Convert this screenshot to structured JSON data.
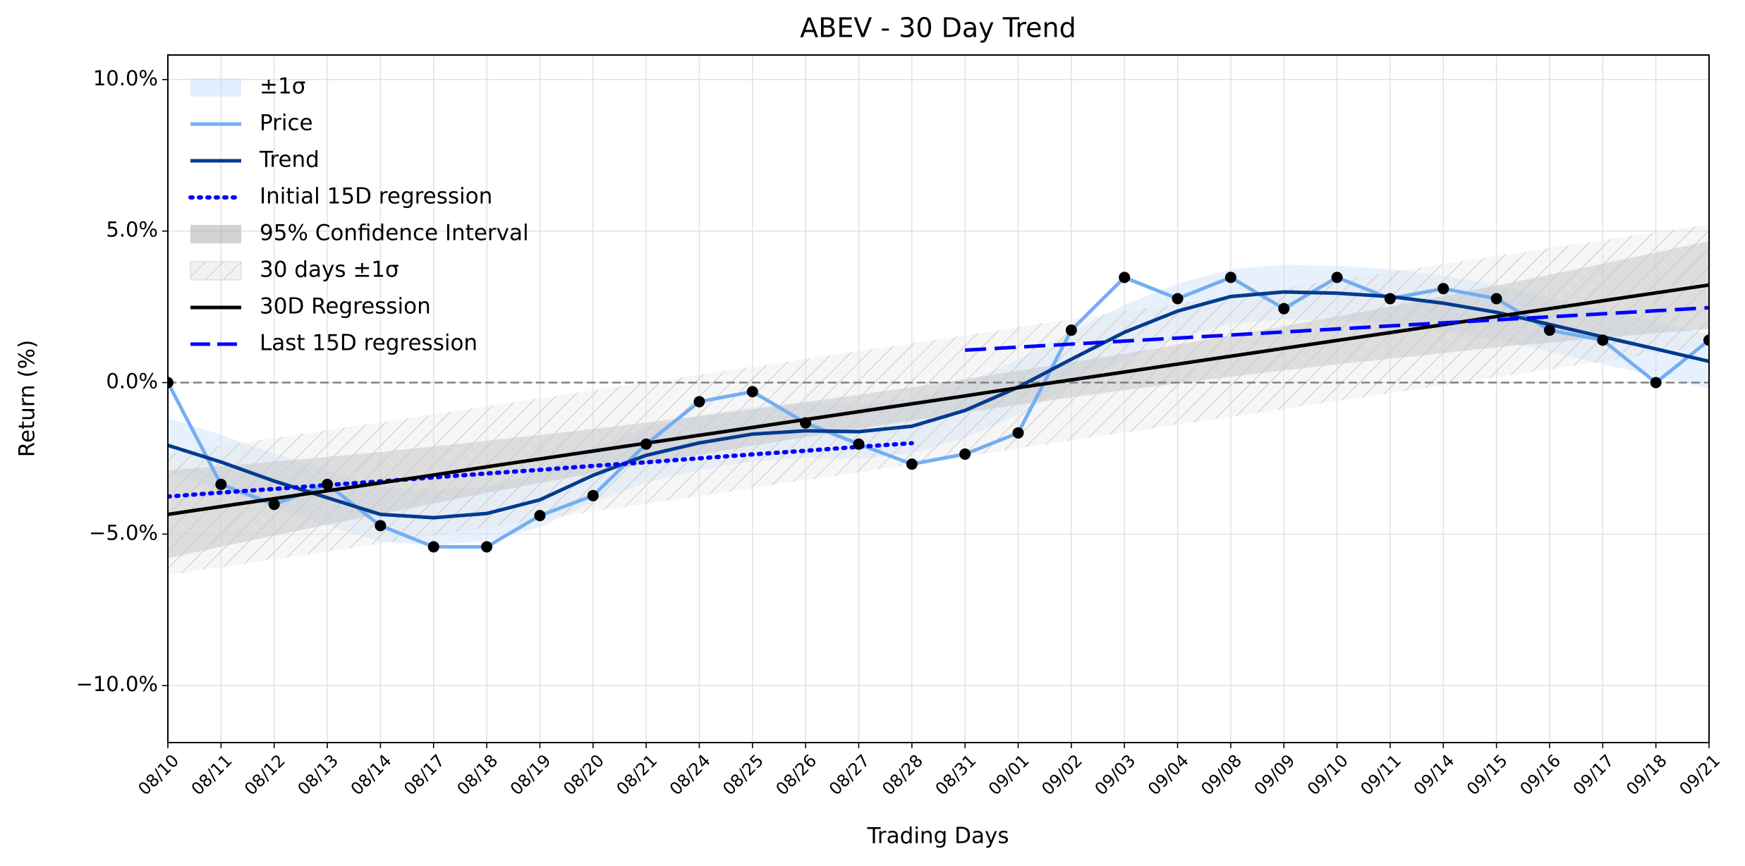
{
  "chart_data": {
    "type": "line",
    "title": "ABEV - 30 Day Trend",
    "x_label": "Trading Days",
    "y_label": "Return (%)",
    "categories": [
      "08/10",
      "08/11",
      "08/12",
      "08/13",
      "08/14",
      "08/17",
      "08/18",
      "08/19",
      "08/20",
      "08/21",
      "08/24",
      "08/25",
      "08/26",
      "08/27",
      "08/28",
      "08/31",
      "09/01",
      "09/02",
      "09/03",
      "09/04",
      "09/08",
      "09/09",
      "09/10",
      "09/11",
      "09/14",
      "09/15",
      "09/16",
      "09/17",
      "09/18",
      "09/21"
    ],
    "ylim": [
      -11.88,
      10.81
    ],
    "yticks": [
      {
        "value": -10,
        "label": "−10.0%"
      },
      {
        "value": -5,
        "label": "−5.0%"
      },
      {
        "value": 0,
        "label": "0.0%"
      },
      {
        "value": 5,
        "label": "5.0%"
      },
      {
        "value": 10,
        "label": "10.0%"
      }
    ],
    "grid": true,
    "reference_line": 0,
    "legend": "upper left",
    "series": [
      {
        "name": "±1σ",
        "kind": "band",
        "color": "#cfe3fb",
        "lower": [
          -2.97,
          -3.52,
          -4.15,
          -4.7,
          -5.25,
          -5.36,
          -5.22,
          -4.77,
          -3.96,
          -3.3,
          -2.89,
          -2.6,
          -2.49,
          -2.52,
          -2.34,
          -1.82,
          -1.05,
          -0.13,
          0.76,
          1.46,
          1.94,
          2.09,
          2.05,
          1.94,
          1.72,
          1.42,
          1.02,
          0.61,
          0.21,
          -0.2
        ],
        "upper": [
          -1.17,
          -1.72,
          -2.35,
          -2.9,
          -3.45,
          -3.56,
          -3.42,
          -2.97,
          -2.16,
          -1.5,
          -1.09,
          -0.8,
          -0.69,
          -0.72,
          -0.54,
          -0.02,
          0.75,
          1.67,
          2.56,
          3.26,
          3.74,
          3.89,
          3.85,
          3.74,
          3.52,
          3.22,
          2.82,
          2.41,
          2.01,
          1.6
        ]
      },
      {
        "name": "Price",
        "kind": "line",
        "color": "#74aef2",
        "line_style": "solid",
        "markers": true,
        "marker_color": "#000000",
        "values": [
          0.0,
          -3.36,
          -4.02,
          -3.36,
          -4.72,
          -5.42,
          -5.42,
          -4.39,
          -3.73,
          -2.03,
          -0.63,
          -0.3,
          -1.33,
          -2.03,
          -2.69,
          -2.36,
          -1.66,
          1.73,
          3.47,
          2.77,
          3.47,
          2.44,
          3.47,
          2.77,
          3.1,
          2.77,
          1.73,
          1.4,
          0.0,
          1.4
        ]
      },
      {
        "name": "Trend",
        "kind": "line",
        "color": "#003b8e",
        "line_style": "solid",
        "values": [
          -2.07,
          -2.62,
          -3.25,
          -3.8,
          -4.35,
          -4.46,
          -4.32,
          -3.87,
          -3.06,
          -2.4,
          -1.99,
          -1.7,
          -1.59,
          -1.62,
          -1.44,
          -0.92,
          -0.15,
          0.77,
          1.66,
          2.36,
          2.84,
          2.99,
          2.95,
          2.84,
          2.62,
          2.32,
          1.92,
          1.51,
          1.11,
          0.7
        ]
      },
      {
        "name": "Initial 15D regression",
        "kind": "line",
        "color": "#0000ff",
        "line_style": "dotted",
        "values": [
          -3.76,
          -3.63,
          -3.51,
          -3.38,
          -3.26,
          -3.13,
          -3.0,
          -2.88,
          -2.75,
          -2.63,
          -2.5,
          -2.37,
          -2.25,
          -2.12,
          -2.0,
          null,
          null,
          null,
          null,
          null,
          null,
          null,
          null,
          null,
          null,
          null,
          null,
          null,
          null,
          null
        ]
      },
      {
        "name": "95% Confidence Interval",
        "kind": "band",
        "color": "#b4b4b4",
        "lower": [
          -5.8,
          -5.42,
          -5.05,
          -4.69,
          -4.33,
          -3.99,
          -3.64,
          -3.31,
          -2.99,
          -2.68,
          -2.38,
          -2.08,
          -1.8,
          -1.52,
          -1.25,
          -0.99,
          -0.73,
          -0.49,
          -0.25,
          -0.03,
          0.19,
          0.4,
          0.6,
          0.79,
          0.97,
          1.16,
          1.32,
          1.48,
          1.63,
          1.77
        ],
        "upper": [
          -2.9,
          -2.76,
          -2.61,
          -2.45,
          -2.29,
          -2.11,
          -1.92,
          -1.73,
          -1.53,
          -1.32,
          -1.1,
          -0.88,
          -0.64,
          -0.4,
          -0.15,
          0.11,
          0.39,
          0.67,
          0.95,
          1.25,
          1.55,
          1.86,
          2.18,
          2.51,
          2.85,
          3.2,
          3.56,
          3.92,
          4.29,
          4.67
        ]
      },
      {
        "name": "30 days ±1σ",
        "kind": "band",
        "color": "#e6e6e6",
        "hatch": true,
        "lower": [
          -6.35,
          -6.09,
          -5.83,
          -5.57,
          -5.31,
          -5.05,
          -4.78,
          -4.52,
          -4.26,
          -4.0,
          -3.74,
          -3.48,
          -3.22,
          -2.96,
          -2.7,
          -2.44,
          -2.17,
          -1.91,
          -1.65,
          -1.39,
          -1.13,
          -0.87,
          -0.61,
          -0.35,
          -0.09,
          0.18,
          0.44,
          0.7,
          0.96,
          1.22
        ],
        "upper": [
          -2.35,
          -2.09,
          -1.83,
          -1.57,
          -1.31,
          -1.05,
          -0.78,
          -0.52,
          -0.26,
          0.0,
          0.26,
          0.52,
          0.78,
          1.04,
          1.3,
          1.56,
          1.83,
          2.09,
          2.35,
          2.61,
          2.87,
          3.13,
          3.39,
          3.65,
          3.91,
          4.18,
          4.44,
          4.7,
          4.96,
          5.22
        ]
      },
      {
        "name": "30D Regression",
        "kind": "line",
        "color": "#000000",
        "line_style": "solid",
        "values": [
          -4.35,
          -4.09,
          -3.83,
          -3.57,
          -3.31,
          -3.05,
          -2.78,
          -2.52,
          -2.26,
          -2.0,
          -1.74,
          -1.48,
          -1.22,
          -0.96,
          -0.7,
          -0.44,
          -0.17,
          0.09,
          0.35,
          0.61,
          0.87,
          1.13,
          1.39,
          1.65,
          1.91,
          2.18,
          2.44,
          2.7,
          2.96,
          3.22
        ]
      },
      {
        "name": "Last 15D regression",
        "kind": "line",
        "color": "#0000ff",
        "line_style": "dashed",
        "values": [
          null,
          null,
          null,
          null,
          null,
          null,
          null,
          null,
          null,
          null,
          null,
          null,
          null,
          null,
          null,
          1.07,
          1.17,
          1.27,
          1.37,
          1.47,
          1.57,
          1.67,
          1.77,
          1.87,
          1.97,
          2.07,
          2.17,
          2.27,
          2.37,
          2.47
        ]
      }
    ]
  }
}
